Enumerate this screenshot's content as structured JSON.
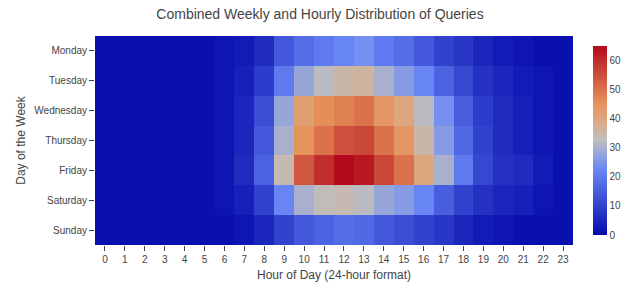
{
  "chart_data": {
    "type": "heatmap",
    "title": "Combined Weekly and Hourly Distribution of Queries",
    "xlabel": "Hour of Day (24-hour format)",
    "ylabel": "Day of the Week",
    "x": [
      "0",
      "1",
      "2",
      "3",
      "4",
      "5",
      "6",
      "7",
      "8",
      "9",
      "10",
      "11",
      "12",
      "13",
      "14",
      "15",
      "16",
      "17",
      "18",
      "19",
      "20",
      "21",
      "22",
      "23"
    ],
    "y": [
      "Monday",
      "Tuesday",
      "Wednesday",
      "Thursday",
      "Friday",
      "Saturday",
      "Sunday"
    ],
    "cells": [
      [
        1,
        1,
        1,
        1,
        1,
        1,
        2,
        3,
        6,
        14,
        18,
        20,
        22,
        24,
        20,
        18,
        14,
        10,
        8,
        5,
        3,
        2,
        1,
        1
      ],
      [
        1,
        1,
        1,
        1,
        1,
        1,
        2,
        4,
        9,
        20,
        28,
        32,
        35,
        36,
        30,
        26,
        22,
        16,
        11,
        7,
        5,
        3,
        2,
        1
      ],
      [
        1,
        1,
        1,
        1,
        1,
        1,
        2,
        5,
        12,
        28,
        42,
        46,
        48,
        50,
        44,
        40,
        32,
        24,
        15,
        9,
        6,
        4,
        2,
        1
      ],
      [
        1,
        1,
        1,
        1,
        1,
        1,
        2,
        5,
        14,
        30,
        45,
        50,
        55,
        56,
        50,
        44,
        35,
        26,
        17,
        10,
        6,
        4,
        2,
        1
      ],
      [
        1,
        1,
        1,
        1,
        1,
        1,
        2,
        6,
        16,
        34,
        54,
        60,
        65,
        63,
        56,
        50,
        40,
        30,
        20,
        11,
        7,
        6,
        3,
        1
      ],
      [
        1,
        1,
        1,
        1,
        1,
        1,
        2,
        4,
        10,
        22,
        30,
        33,
        34,
        32,
        28,
        26,
        22,
        15,
        10,
        7,
        5,
        4,
        2,
        1
      ],
      [
        1,
        1,
        1,
        1,
        1,
        1,
        1,
        2,
        5,
        10,
        14,
        16,
        18,
        17,
        14,
        12,
        10,
        8,
        5,
        3,
        2,
        1,
        1,
        1
      ]
    ],
    "color_range": [
      0,
      65
    ],
    "color_ticks": [
      0,
      10,
      20,
      30,
      40,
      50,
      60
    ],
    "grid": false
  }
}
